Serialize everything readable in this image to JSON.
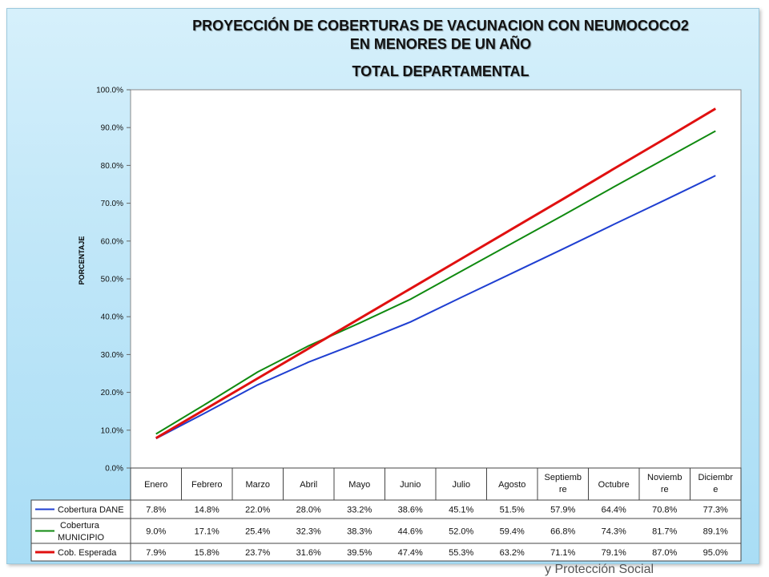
{
  "title_line1": "PROYECCIÓN DE COBERTURAS DE VACUNACION  CON NEUMOCOCO2",
  "title_line2": "EN MENORES DE UN AÑO",
  "title_line3": "TOTAL DEPARTAMENTAL",
  "footer_partial": "y Protección Social",
  "chart_data": {
    "type": "line",
    "title": "PROYECCIÓN DE COBERTURAS DE VACUNACION  CON NEUMOCOCO2 EN MENORES DE UN AÑO TOTAL DEPARTAMENTAL",
    "ylabel": "PORCENTAJE",
    "xlabel": "",
    "ylim": [
      0,
      100
    ],
    "yticks": [
      "0.0%",
      "10.0%",
      "20.0%",
      "30.0%",
      "40.0%",
      "50.0%",
      "60.0%",
      "70.0%",
      "80.0%",
      "90.0%",
      "100.0%"
    ],
    "categories": [
      "Enero",
      "Febrero",
      "Marzo",
      "Abril",
      "Mayo",
      "Junio",
      "Julio",
      "Agosto",
      "Septiemb re",
      "Octubre",
      "Noviemb re",
      "Diciembr e"
    ],
    "grid": false,
    "legend": "data-table",
    "series": [
      {
        "name": "Cobertura DANE",
        "color": "#1f3fd1",
        "values": [
          7.8,
          14.8,
          22.0,
          28.0,
          33.2,
          38.6,
          45.1,
          51.5,
          57.9,
          64.4,
          70.8,
          77.3
        ],
        "labels": [
          "7.8%",
          "14.8%",
          "22.0%",
          "28.0%",
          "33.2%",
          "38.6%",
          "45.1%",
          "51.5%",
          "57.9%",
          "64.4%",
          "70.8%",
          "77.3%"
        ]
      },
      {
        "name": "Cobertura MUNICIPIO",
        "color": "#108a10",
        "values": [
          9.0,
          17.1,
          25.4,
          32.3,
          38.3,
          44.6,
          52.0,
          59.4,
          66.8,
          74.3,
          81.7,
          89.1
        ],
        "labels": [
          "9.0%",
          "17.1%",
          "25.4%",
          "32.3%",
          "38.3%",
          "44.6%",
          "52.0%",
          "59.4%",
          "66.8%",
          "74.3%",
          "81.7%",
          "89.1%"
        ]
      },
      {
        "name": "Cob. Esperada",
        "color": "#e01010",
        "values": [
          7.9,
          15.8,
          23.7,
          31.6,
          39.5,
          47.4,
          55.3,
          63.2,
          71.1,
          79.1,
          87.0,
          95.0
        ],
        "labels": [
          "7.9%",
          "15.8%",
          "23.7%",
          "31.6%",
          "39.5%",
          "47.4%",
          "55.3%",
          "63.2%",
          "71.1%",
          "79.1%",
          "87.0%",
          "95.0%"
        ]
      }
    ]
  }
}
